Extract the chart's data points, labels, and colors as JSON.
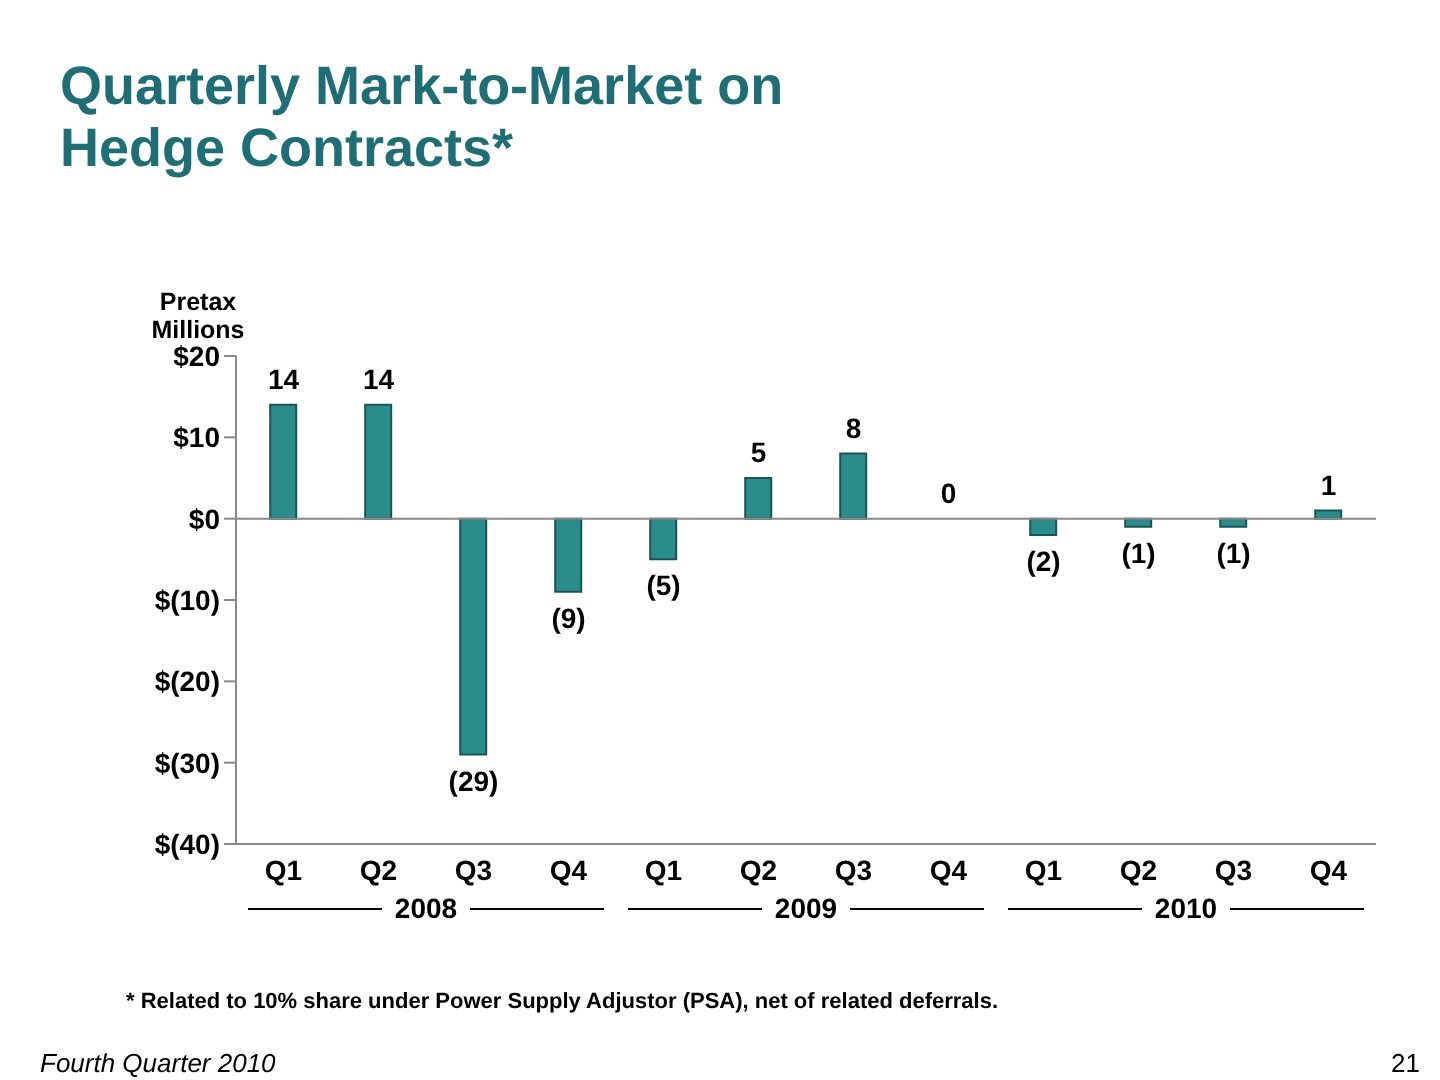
{
  "chart_data": {
    "type": "bar",
    "title": "Quarterly Mark-to-Market on Hedge Contracts*",
    "ylabel": "Pretax Millions",
    "categories": [
      "Q1",
      "Q2",
      "Q3",
      "Q4",
      "Q1",
      "Q2",
      "Q3",
      "Q4",
      "Q1",
      "Q2",
      "Q3",
      "Q4"
    ],
    "values": [
      14,
      14,
      -29,
      -9,
      -5,
      5,
      8,
      0,
      -2,
      -1,
      -1,
      1
    ],
    "value_labels": [
      "14",
      "14",
      "(29)",
      "(9)",
      "(5)",
      "5",
      "8",
      "0",
      "(2)",
      "(1)",
      "(1)",
      "1"
    ],
    "color": "#2b8c8c",
    "ylim": [
      -40,
      20
    ],
    "yticks": [
      {
        "value": -40,
        "label": "$(40)"
      },
      {
        "value": -30,
        "label": "$(30)"
      },
      {
        "value": -20,
        "label": "$(20)"
      },
      {
        "value": -10,
        "label": "$(10)"
      },
      {
        "value": 0,
        "label": "$0"
      },
      {
        "value": 10,
        "label": "$10"
      },
      {
        "value": 20,
        "label": "$20"
      }
    ],
    "grid": false,
    "legend": false,
    "ref_lines": [
      {
        "axis": "y",
        "value": 0
      }
    ],
    "annotations": [
      "2008",
      "2009",
      "2010",
      "* Related to 10% share under Power Supply Adjustor (PSA), net of related deferrals.",
      "Fourth Quarter 2010",
      "21"
    ]
  }
}
